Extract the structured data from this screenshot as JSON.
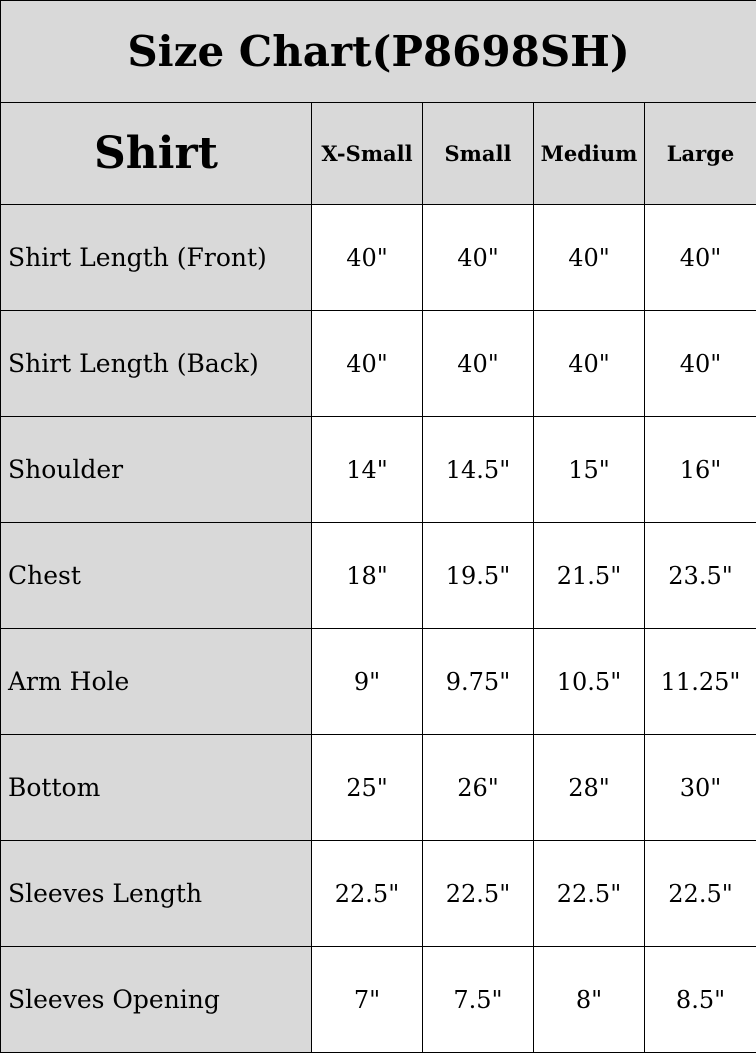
{
  "title": "Size Chart(P8698SH)",
  "header": {
    "section": "Shirt",
    "sizes": [
      "X-Small",
      "Small",
      "Medium",
      "Large"
    ]
  },
  "rows": [
    {
      "label": "Shirt Length (Front)",
      "values": [
        "40\"",
        "40\"",
        "40\"",
        "40\""
      ]
    },
    {
      "label": "Shirt Length (Back)",
      "values": [
        "40\"",
        "40\"",
        "40\"",
        "40\""
      ]
    },
    {
      "label": "Shoulder",
      "values": [
        "14\"",
        "14.5\"",
        "15\"",
        "16\""
      ]
    },
    {
      "label": "Chest",
      "values": [
        "18\"",
        "19.5\"",
        "21.5\"",
        "23.5\""
      ]
    },
    {
      "label": "Arm Hole",
      "values": [
        "9\"",
        "9.75\"",
        "10.5\"",
        "11.25\""
      ]
    },
    {
      "label": "Bottom",
      "values": [
        "25\"",
        "26\"",
        "28\"",
        "30\""
      ]
    },
    {
      "label": "Sleeves Length",
      "values": [
        "22.5\"",
        "22.5\"",
        "22.5\"",
        "22.5\""
      ]
    },
    {
      "label": "Sleeves Opening",
      "values": [
        "7\"",
        "7.5\"",
        "8\"",
        "8.5\""
      ]
    }
  ],
  "colors": {
    "header_bg": "#d9d9d9",
    "cell_bg": "#ffffff",
    "border": "#000000"
  }
}
